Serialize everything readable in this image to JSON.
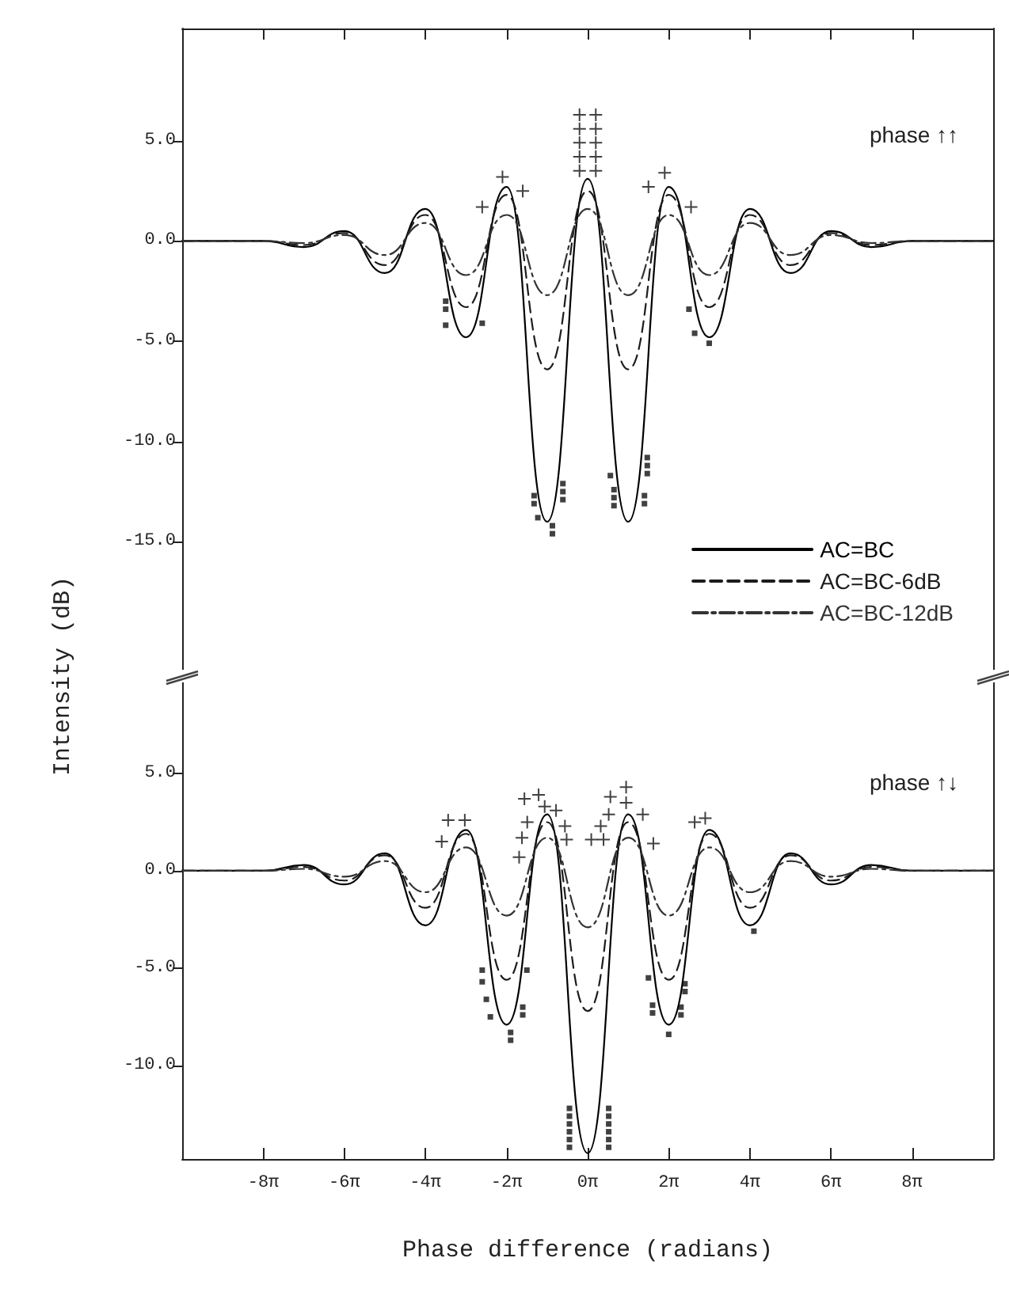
{
  "chart_data": [
    {
      "type": "line",
      "ylabel": "Intensity (dB)",
      "x": [
        -31.42,
        -28.27,
        -25.13,
        -21.99,
        -18.85,
        -15.71,
        -12.57,
        -9.42,
        -6.28,
        -3.14,
        0,
        3.14,
        6.28,
        9.42,
        12.57,
        15.71,
        18.85,
        21.99,
        25.13,
        28.27,
        31.42
      ],
      "series": [
        {
          "name": "AC=BC",
          "color": "#000000",
          "line_style": "solid",
          "values": [
            0,
            0,
            0,
            -0.3,
            0.5,
            -1.6,
            1.6,
            -4.8,
            2.7,
            -14.0,
            3.1,
            -14.0,
            2.7,
            -4.8,
            1.6,
            -1.6,
            0.5,
            -0.3,
            0,
            0,
            0
          ]
        },
        {
          "name": "AC=BC-6dB",
          "color": "#1c1c1c",
          "line_style": "dashed",
          "values": [
            0,
            0,
            0,
            -0.2,
            0.4,
            -1.2,
            1.3,
            -3.3,
            2.3,
            -6.4,
            2.5,
            -6.4,
            2.3,
            -3.3,
            1.3,
            -1.2,
            0.4,
            -0.2,
            0,
            0,
            0
          ]
        },
        {
          "name": "AC=BC-12dB",
          "color": "#333333",
          "line_style": "dashdot",
          "values": [
            0,
            0,
            0,
            -0.1,
            0.3,
            -0.7,
            0.9,
            -1.7,
            1.3,
            -2.7,
            1.6,
            -2.7,
            1.3,
            -1.7,
            0.9,
            -0.7,
            0.3,
            -0.1,
            0,
            0,
            0
          ]
        },
        {
          "type": "scatter",
          "color": "#111111",
          "marker": "cross",
          "x": [
            -0.63,
            -0.63,
            -0.63,
            -0.63,
            -0.63,
            0.63,
            0.63,
            0.63,
            0.63,
            0.63,
            -6.6,
            -5.03,
            -8.17,
            5.97,
            4.71,
            8.01
          ],
          "values": [
            3.5,
            4.2,
            4.9,
            5.6,
            6.3,
            3.5,
            4.2,
            4.9,
            5.6,
            6.3,
            3.2,
            2.5,
            1.7,
            3.4,
            2.7,
            1.7
          ]
        },
        {
          "type": "scatter",
          "color": "#111111",
          "marker": "square",
          "x": [
            -11.0,
            -11.0,
            -11.0,
            -8.17,
            7.85,
            8.29,
            9.42,
            -4.15,
            -4.15,
            -3.86,
            -2.73,
            -2.73,
            -1.92,
            -1.92,
            -1.92,
            1.76,
            2.04,
            2.04,
            2.04,
            4.62,
            4.62,
            4.62,
            4.4,
            4.4
          ],
          "values": [
            -3.0,
            -3.4,
            -4.2,
            -4.1,
            -3.4,
            -4.6,
            -5.1,
            -12.7,
            -13.1,
            -13.8,
            -14.2,
            -14.6,
            -12.1,
            -12.5,
            -12.9,
            -11.7,
            -12.4,
            -12.8,
            -13.2,
            -10.8,
            -11.2,
            -11.6,
            -12.7,
            -13.1
          ]
        }
      ],
      "xlim": [
        -31.42,
        31.42
      ],
      "xticks": [
        {
          "value": -25.13,
          "label": null
        },
        {
          "value": -18.85,
          "label": null
        },
        {
          "value": -12.57,
          "label": null
        },
        {
          "value": -6.28,
          "label": null
        },
        {
          "value": 0,
          "label": null
        },
        {
          "value": 6.28,
          "label": null
        },
        {
          "value": 12.57,
          "label": null
        },
        {
          "value": 18.85,
          "label": null
        },
        {
          "value": 25.13,
          "label": null
        }
      ],
      "ylim": [
        -21.7,
        10.6
      ],
      "yticks": [
        {
          "value": 5,
          "label": "5.0"
        },
        {
          "value": 0,
          "label": "0.0"
        },
        {
          "value": -5,
          "label": "-5.0"
        },
        {
          "value": -10,
          "label": "-10.0"
        },
        {
          "value": -15,
          "label": "-15.0"
        }
      ],
      "tick_labels": "y",
      "grid": false,
      "marker": "none",
      "legend": "bottom right",
      "annotations": [
        "phase ↑↑"
      ]
    },
    {
      "type": "line",
      "xlabel": "Phase difference (radians)",
      "x": [
        -31.42,
        -28.27,
        -25.13,
        -21.99,
        -18.85,
        -15.71,
        -12.57,
        -9.42,
        -6.28,
        -3.14,
        0,
        3.14,
        6.28,
        9.42,
        12.57,
        15.71,
        18.85,
        21.99,
        25.13,
        28.27,
        31.42
      ],
      "series": [
        {
          "color": "#000000",
          "line_style": "solid",
          "values": [
            0,
            0,
            0,
            0.3,
            -0.7,
            0.9,
            -2.8,
            2.1,
            -7.9,
            2.9,
            -14.5,
            2.9,
            -7.9,
            2.1,
            -2.8,
            0.9,
            -0.7,
            0.3,
            0,
            0,
            0
          ]
        },
        {
          "color": "#1c1c1c",
          "line_style": "dashed",
          "values": [
            0,
            0,
            0,
            0.2,
            -0.5,
            0.8,
            -1.9,
            1.9,
            -5.6,
            2.5,
            -7.2,
            2.5,
            -5.6,
            1.9,
            -1.9,
            0.8,
            -0.5,
            0.2,
            0,
            0,
            0
          ]
        },
        {
          "color": "#333333",
          "line_style": "dashdot",
          "values": [
            0,
            0,
            0,
            0.1,
            -0.3,
            0.5,
            -1.1,
            1.2,
            -2.3,
            1.7,
            -2.9,
            1.7,
            -2.3,
            1.2,
            -1.1,
            0.5,
            -0.3,
            0.1,
            0,
            0,
            0
          ]
        },
        {
          "type": "scatter",
          "color": "#111111",
          "marker": "cross",
          "x": [
            -10.81,
            -9.52,
            -11.31,
            -4.9,
            -3.8,
            -3.33,
            -4.68,
            -5.09,
            -5.31,
            -2.45,
            -1.76,
            -1.63,
            1.76,
            2.98,
            2.98,
            1.63,
            1.01,
            0.28,
            1.23,
            4.27,
            5.09,
            8.29,
            9.11
          ],
          "values": [
            2.6,
            2.6,
            1.5,
            3.7,
            3.9,
            3.3,
            2.5,
            1.7,
            0.7,
            3.1,
            2.3,
            1.6,
            3.8,
            4.3,
            3.5,
            2.9,
            2.3,
            1.6,
            1.6,
            2.9,
            1.4,
            2.5,
            2.7
          ]
        },
        {
          "type": "scatter",
          "color": "#111111",
          "marker": "square",
          "x": [
            -8.17,
            -8.17,
            -7.85,
            -7.54,
            -4.71,
            -5.03,
            -5.03,
            -5.97,
            -5.97,
            4.71,
            5.03,
            5.03,
            7.54,
            7.54,
            7.23,
            7.23,
            6.28,
            12.88,
            -1.41,
            -1.41,
            -1.41,
            -1.41,
            -1.41,
            -1.41,
            1.63,
            1.63,
            1.63,
            1.63,
            1.63,
            1.63
          ],
          "values": [
            -5.1,
            -5.7,
            -6.6,
            -7.5,
            -5.1,
            -7.0,
            -7.4,
            -8.3,
            -8.7,
            -5.5,
            -6.9,
            -7.3,
            -5.8,
            -6.2,
            -7.0,
            -7.4,
            -8.4,
            -3.1,
            -12.2,
            -12.6,
            -13.0,
            -13.4,
            -13.8,
            -14.2,
            -12.2,
            -12.6,
            -13.0,
            -13.4,
            -13.8,
            -14.2
          ]
        }
      ],
      "xlim": [
        -31.42,
        31.42
      ],
      "xticks": [
        {
          "value": -25.13,
          "label": "-8π"
        },
        {
          "value": -18.85,
          "label": "-6π"
        },
        {
          "value": -12.57,
          "label": "-4π"
        },
        {
          "value": -6.28,
          "label": "-2π"
        },
        {
          "value": 0,
          "label": "0π"
        },
        {
          "value": 6.28,
          "label": "2π"
        },
        {
          "value": 12.57,
          "label": "4π"
        },
        {
          "value": 18.85,
          "label": "6π"
        },
        {
          "value": 25.13,
          "label": "8π"
        }
      ],
      "ylim": [
        -14.8,
        10
      ],
      "yticks": [
        {
          "value": 5,
          "label": "5.0"
        },
        {
          "value": 0,
          "label": "0.0"
        },
        {
          "value": -5,
          "label": "-5.0"
        },
        {
          "value": -10,
          "label": "-10.0"
        }
      ],
      "grid": false,
      "marker": "none",
      "annotations": [
        "phase ↑↓"
      ]
    }
  ]
}
